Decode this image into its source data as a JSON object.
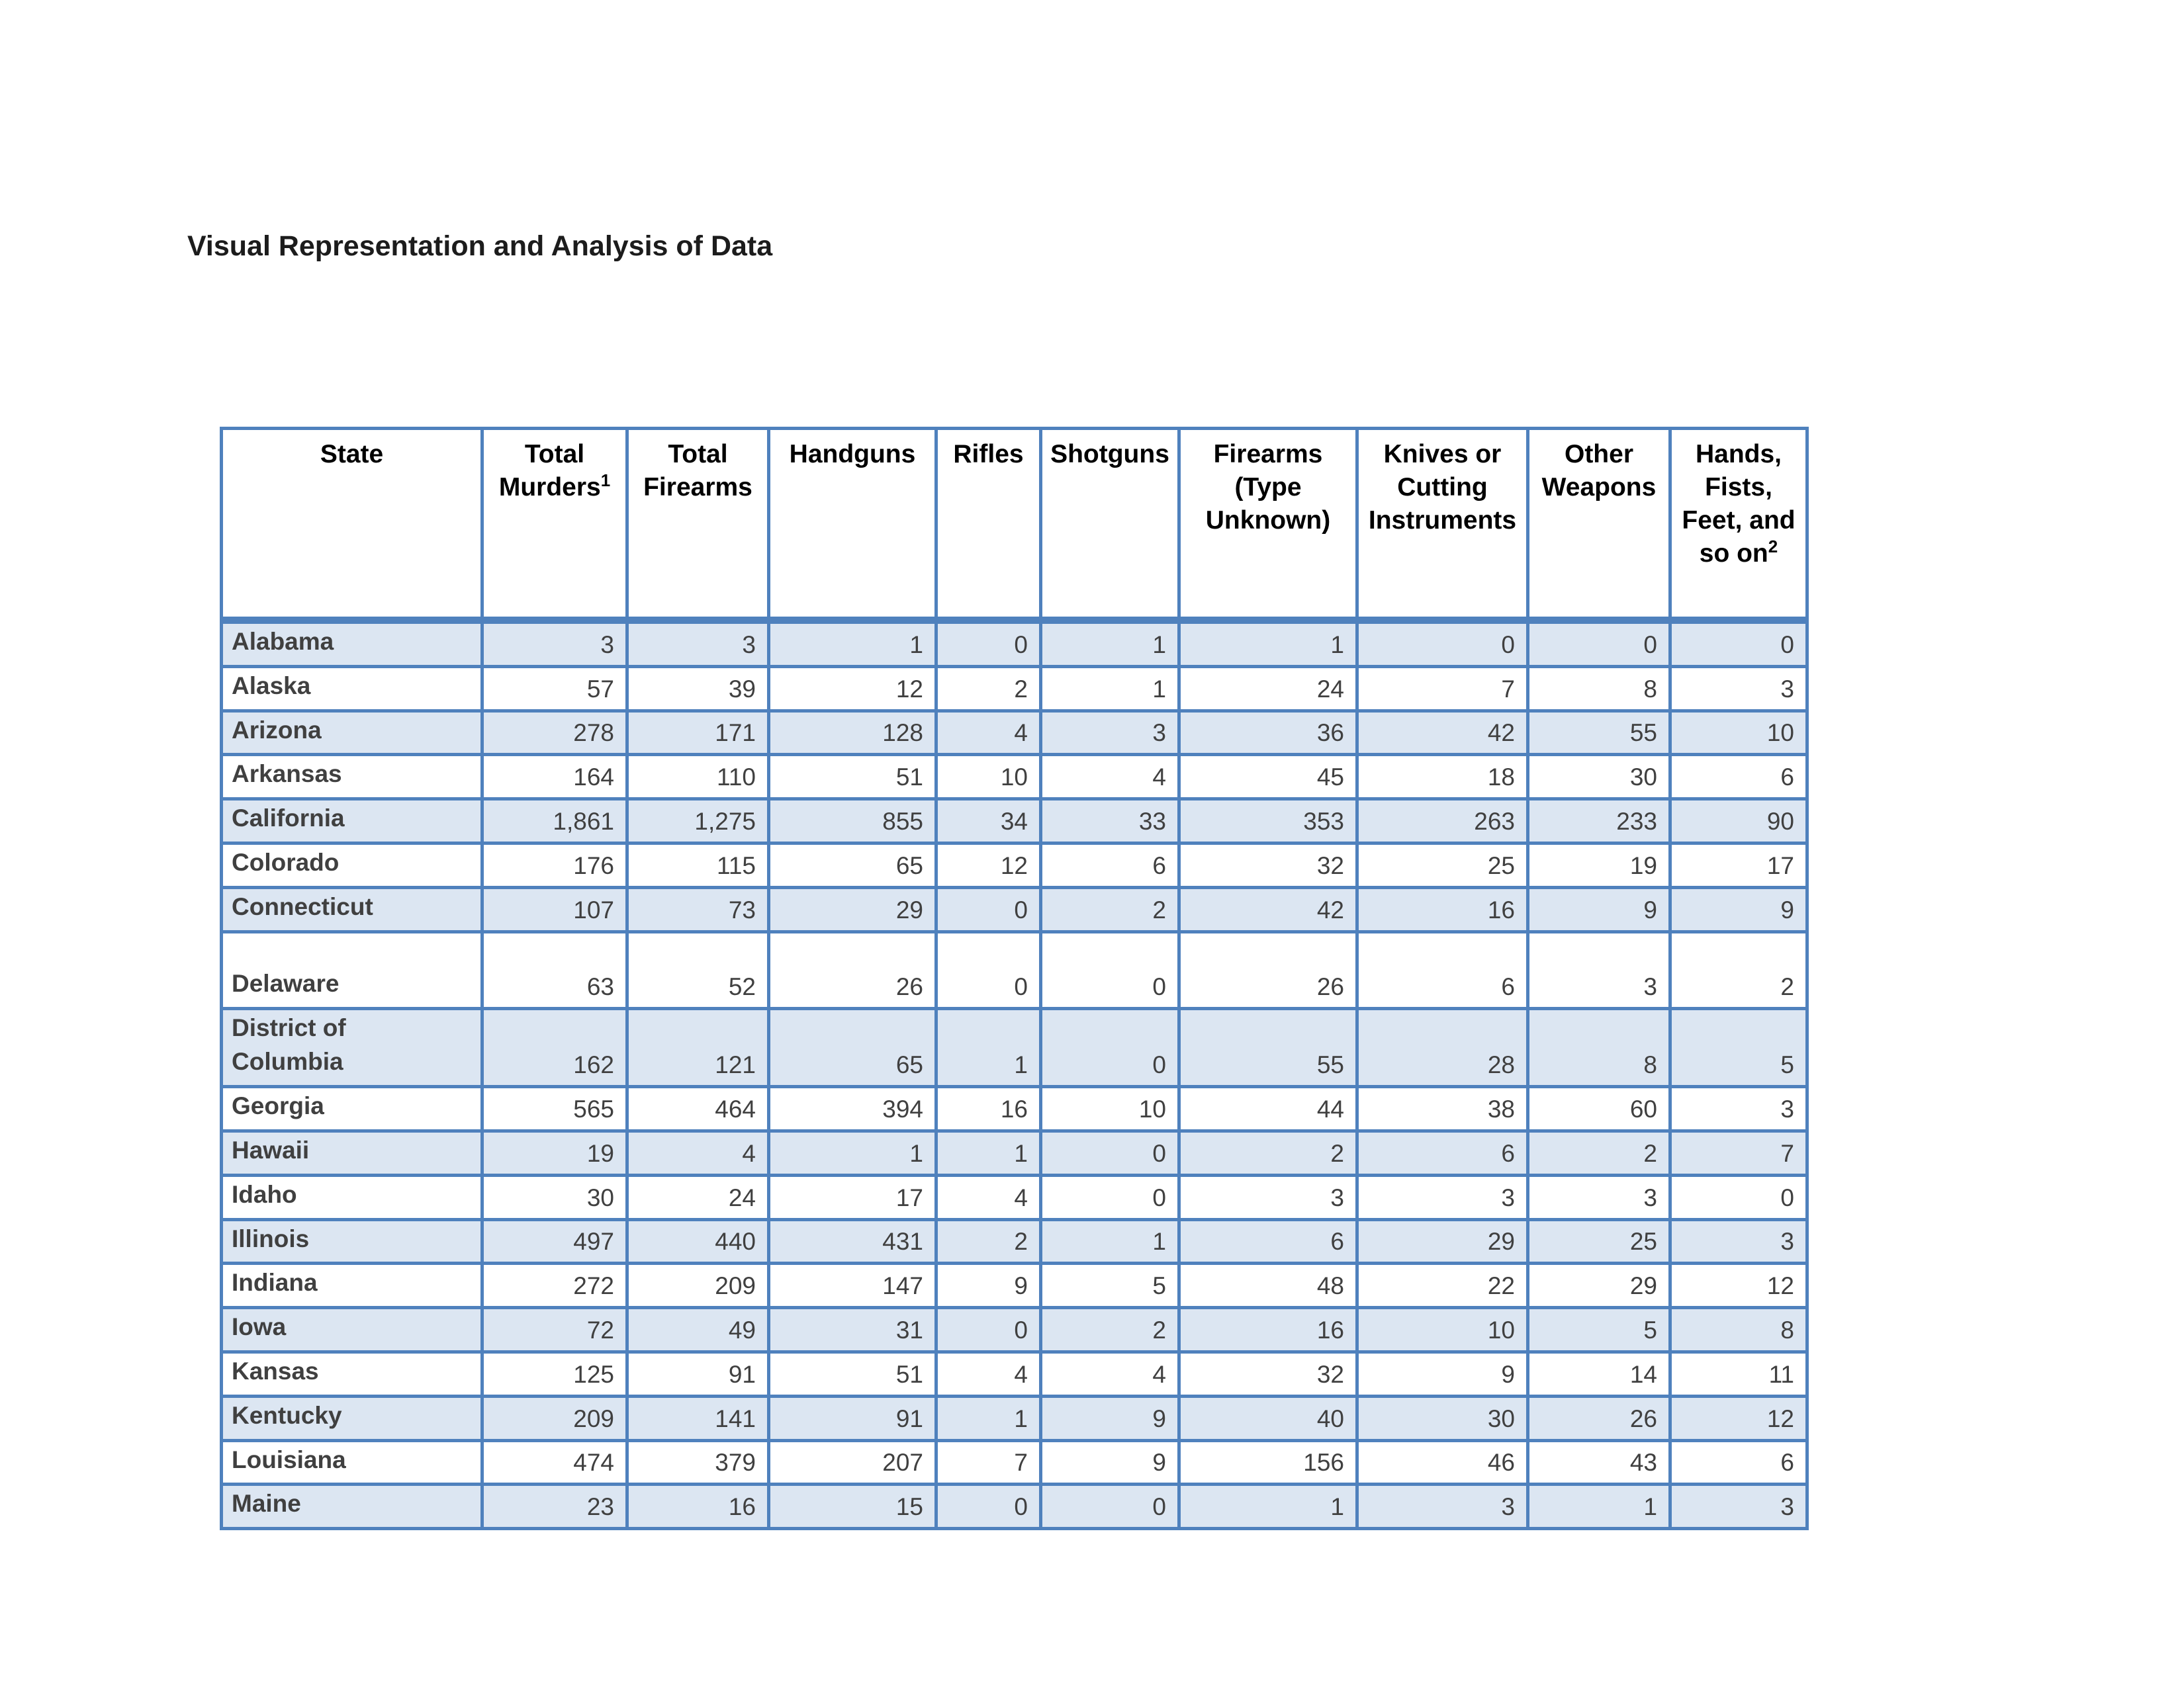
{
  "page": {
    "title": "Visual Representation and Analysis of Data"
  },
  "table": {
    "columns": [
      {
        "label": "State",
        "sup": ""
      },
      {
        "label": "Total Murders",
        "sup": "1"
      },
      {
        "label": "Total Firearms",
        "sup": ""
      },
      {
        "label": "Handguns",
        "sup": ""
      },
      {
        "label": "Rifles",
        "sup": ""
      },
      {
        "label": "Shotguns",
        "sup": ""
      },
      {
        "label": "Firearms (Type Unknown)",
        "sup": ""
      },
      {
        "label": "Knives or Cutting Instruments",
        "sup": ""
      },
      {
        "label": "Other Weapons",
        "sup": ""
      },
      {
        "label": "Hands, Fists, Feet, and so on",
        "sup": "2"
      }
    ],
    "rows": [
      {
        "state": "Alabama",
        "values": [
          "3",
          "3",
          "1",
          "0",
          "1",
          "1",
          "0",
          "0",
          "0"
        ]
      },
      {
        "state": "Alaska",
        "values": [
          "57",
          "39",
          "12",
          "2",
          "1",
          "24",
          "7",
          "8",
          "3"
        ]
      },
      {
        "state": "Arizona",
        "values": [
          "278",
          "171",
          "128",
          "4",
          "3",
          "36",
          "42",
          "55",
          "10"
        ]
      },
      {
        "state": "Arkansas",
        "values": [
          "164",
          "110",
          "51",
          "10",
          "4",
          "45",
          "18",
          "30",
          "6"
        ]
      },
      {
        "state": "California",
        "values": [
          "1,861",
          "1,275",
          "855",
          "34",
          "33",
          "353",
          "263",
          "233",
          "90"
        ]
      },
      {
        "state": "Colorado",
        "values": [
          "176",
          "115",
          "65",
          "12",
          "6",
          "32",
          "25",
          "19",
          "17"
        ]
      },
      {
        "state": "Connecticut",
        "values": [
          "107",
          "73",
          "29",
          "0",
          "2",
          "42",
          "16",
          "9",
          "9"
        ]
      },
      {
        "state": "Delaware",
        "values": [
          "63",
          "52",
          "26",
          "0",
          "0",
          "26",
          "6",
          "3",
          "2"
        ]
      },
      {
        "state": "District of\nColumbia",
        "values": [
          "162",
          "121",
          "65",
          "1",
          "0",
          "55",
          "28",
          "8",
          "5"
        ]
      },
      {
        "state": "Georgia",
        "values": [
          "565",
          "464",
          "394",
          "16",
          "10",
          "44",
          "38",
          "60",
          "3"
        ]
      },
      {
        "state": "Hawaii",
        "values": [
          "19",
          "4",
          "1",
          "1",
          "0",
          "2",
          "6",
          "2",
          "7"
        ]
      },
      {
        "state": "Idaho",
        "values": [
          "30",
          "24",
          "17",
          "4",
          "0",
          "3",
          "3",
          "3",
          "0"
        ]
      },
      {
        "state": "Illinois",
        "values": [
          "497",
          "440",
          "431",
          "2",
          "1",
          "6",
          "29",
          "25",
          "3"
        ]
      },
      {
        "state": "Indiana",
        "values": [
          "272",
          "209",
          "147",
          "9",
          "5",
          "48",
          "22",
          "29",
          "12"
        ]
      },
      {
        "state": "Iowa",
        "values": [
          "72",
          "49",
          "31",
          "0",
          "2",
          "16",
          "10",
          "5",
          "8"
        ]
      },
      {
        "state": "Kansas",
        "values": [
          "125",
          "91",
          "51",
          "4",
          "4",
          "32",
          "9",
          "14",
          "11"
        ]
      },
      {
        "state": "Kentucky",
        "values": [
          "209",
          "141",
          "91",
          "1",
          "9",
          "40",
          "30",
          "26",
          "12"
        ]
      },
      {
        "state": "Louisiana",
        "values": [
          "474",
          "379",
          "207",
          "7",
          "9",
          "156",
          "46",
          "43",
          "6"
        ]
      },
      {
        "state": "Maine",
        "values": [
          "23",
          "16",
          "15",
          "0",
          "0",
          "1",
          "3",
          "1",
          "3"
        ]
      }
    ],
    "style": {
      "border_color": "#4F81BD",
      "shaded_row_fill": "#dce6f2",
      "text_color": "#404040"
    }
  }
}
